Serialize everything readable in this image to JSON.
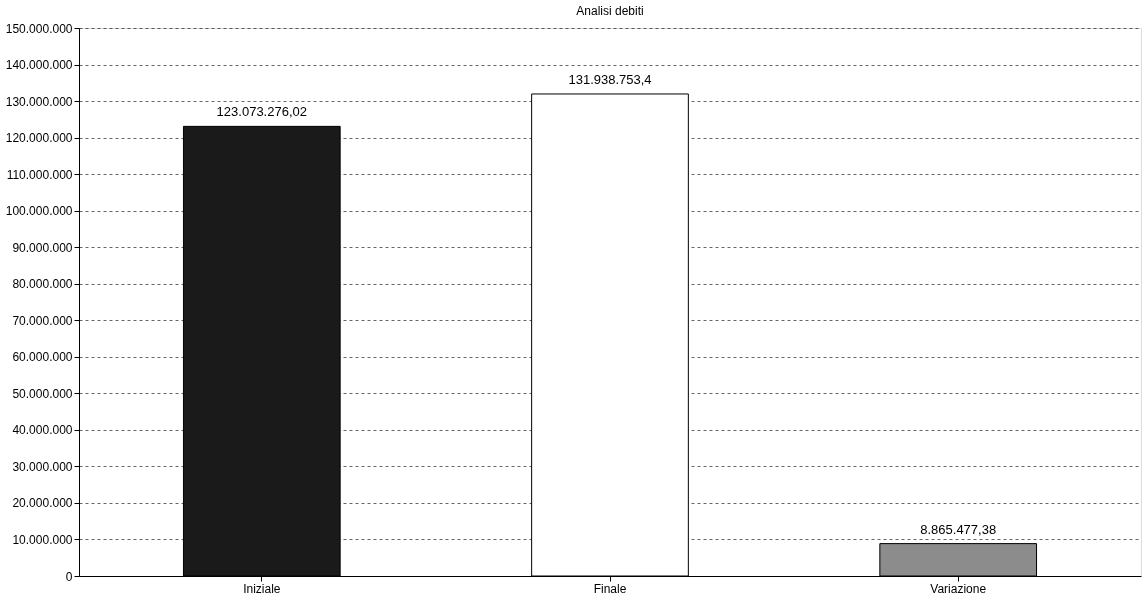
{
  "chart_data": {
    "type": "bar",
    "title": "Analisi debiti",
    "categories": [
      "Iniziale",
      "Finale",
      "Variazione"
    ],
    "values": [
      123073276.02,
      131938753.4,
      8865477.38
    ],
    "colors": [
      "#1a1a1a",
      "#ffffff",
      "#8c8c8c"
    ],
    "value_labels": [
      "123.073.276,02",
      "131.938.753,4",
      "8.865.477,38"
    ],
    "ylim": [
      0,
      150000000
    ],
    "yticks": [
      {
        "value": 0,
        "label": "0"
      },
      {
        "value": 10000000,
        "label": "10.000.000"
      },
      {
        "value": 20000000,
        "label": "20.000.000"
      },
      {
        "value": 30000000,
        "label": "30.000.000"
      },
      {
        "value": 40000000,
        "label": "40.000.000"
      },
      {
        "value": 50000000,
        "label": "50.000.000"
      },
      {
        "value": 60000000,
        "label": "60.000.000"
      },
      {
        "value": 70000000,
        "label": "70.000.000"
      },
      {
        "value": 80000000,
        "label": "80.000.000"
      },
      {
        "value": 90000000,
        "label": "90.000.000"
      },
      {
        "value": 100000000,
        "label": "100.000.000"
      },
      {
        "value": 110000000,
        "label": "110.000.000"
      },
      {
        "value": 120000000,
        "label": "120.000.000"
      },
      {
        "value": 130000000,
        "label": "130.000.000"
      },
      {
        "value": 140000000,
        "label": "140.000.000"
      },
      {
        "value": 150000000,
        "label": "150.000.000"
      }
    ],
    "grid": "y"
  }
}
